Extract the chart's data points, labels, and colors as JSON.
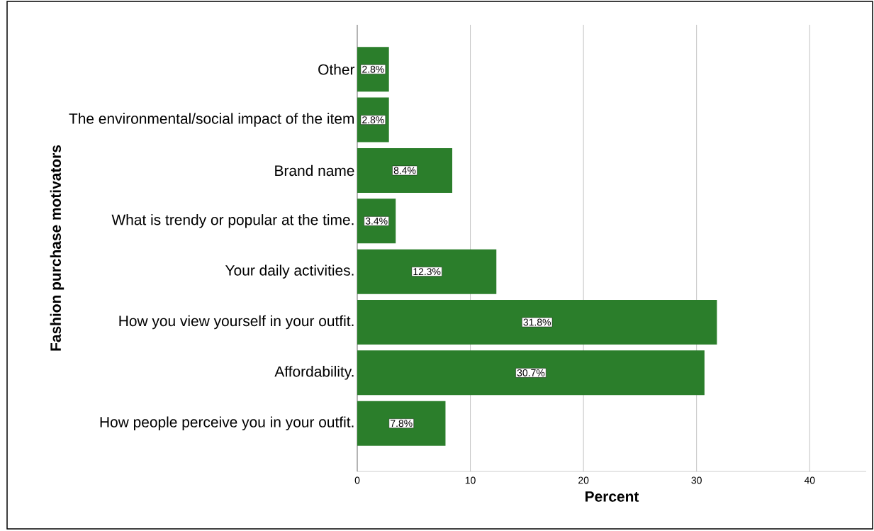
{
  "chart_data": {
    "type": "bar",
    "orientation": "horizontal",
    "xlabel": "Percent",
    "ylabel": "Fashion purchase motivators",
    "categories": [
      "Other",
      "The environmental/social impact of the item",
      "Brand name",
      "What is trendy or popular at the time.",
      "Your daily activities.",
      "How you view yourself in your outfit.",
      "Affordability.",
      "How people perceive you in your outfit."
    ],
    "values": [
      2.8,
      2.8,
      8.4,
      3.4,
      12.3,
      31.8,
      30.7,
      7.8
    ],
    "value_labels": [
      "2.8%",
      "2.8%",
      "8.4%",
      "3.4%",
      "12.3%",
      "31.8%",
      "30.7%",
      "7.8%"
    ],
    "color": "#2b7e2b",
    "xlim": [
      0,
      45
    ],
    "xticks": [
      0,
      10,
      20,
      30,
      40
    ],
    "grid": "x"
  }
}
